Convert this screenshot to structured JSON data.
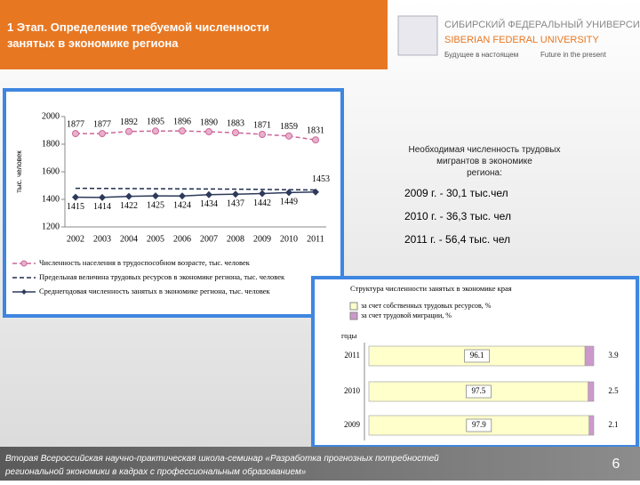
{
  "header": {
    "title": "1 Этап. Определение требуемой численности занятых в экономике региона"
  },
  "logo": {
    "ru": "СИБИРСКИЙ ФЕДЕРАЛЬНЫЙ УНИВЕРСИТЕТ",
    "en": "SIBERIAN FEDERAL UNIVERSITY",
    "motto_ru": "Будущее в настоящем",
    "motto_en": "Future in the present"
  },
  "info": {
    "title": "Необходимая численность трудовых мигрантов в экономике региона:",
    "items": [
      "2009 г. - 30,1 тыс.чел",
      "2010 г. - 36,3 тыс. чел",
      "2011 г. - 56,4 тыс. чел"
    ]
  },
  "footer": {
    "text": "Вторая Всероссийская научно-практическая школа-семинар «Разработка прогнозных потребностей региональной экономики в кадрах с профессиональным образованием»",
    "page": "6"
  },
  "chart_data": [
    {
      "type": "line",
      "ylabel": "тыс. человек",
      "categories": [
        "2002",
        "2003",
        "2004",
        "2005",
        "2006",
        "2007",
        "2008",
        "2009",
        "2010",
        "2011"
      ],
      "ylim": [
        1200,
        2000
      ],
      "yticks": [
        1200,
        1400,
        1600,
        1800,
        2000
      ],
      "grid": false,
      "series": [
        {
          "name": "Численность населения в трудоспособном возрасте, тыс. человек",
          "color": "#cc6699",
          "dash": true,
          "marker": "circle",
          "data_labels": true,
          "values": [
            1877,
            1877,
            1892,
            1895,
            1896,
            1890,
            1883,
            1871,
            1859,
            1831
          ]
        },
        {
          "name": "Предельная величина трудовых ресурсов в экономике региона, тыс. человек",
          "color": "#1f2d4d",
          "dash": true,
          "marker": null,
          "data_labels": false,
          "values": [
            1480,
            1479,
            1478,
            1477,
            1476,
            1475,
            1474,
            1472,
            1470,
            1468
          ]
        },
        {
          "name": "Среднегодовая численность занятых в экономике региона, тыс. человек",
          "color": "#2d3a5a",
          "dash": false,
          "marker": "diamond",
          "data_labels": true,
          "values": [
            1415,
            1414,
            1422,
            1425,
            1424,
            1434,
            1437,
            1442,
            1449,
            1453
          ]
        }
      ]
    },
    {
      "type": "stacked-bar-horizontal",
      "title": "Структура численности занятых в экономике края",
      "ylabel": "годы",
      "categories": [
        "2011",
        "2010",
        "2009"
      ],
      "xlim": [
        0,
        100
      ],
      "series": [
        {
          "name": "за счет собственных трудовых ресурсов, %",
          "color": "#ffffcc",
          "values": [
            96.1,
            97.5,
            97.9
          ]
        },
        {
          "name": "за счет трудовой миграции, %",
          "color": "#cc99cc",
          "values": [
            3.9,
            2.5,
            2.1
          ]
        }
      ]
    }
  ]
}
